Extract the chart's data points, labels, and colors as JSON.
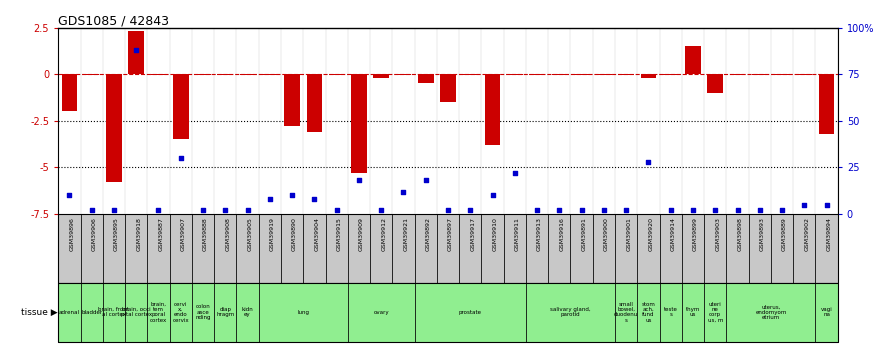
{
  "title": "GDS1085 / 42843",
  "samples": [
    "GSM39896",
    "GSM39906",
    "GSM39895",
    "GSM39918",
    "GSM39887",
    "GSM39907",
    "GSM39888",
    "GSM39908",
    "GSM39905",
    "GSM39919",
    "GSM39890",
    "GSM39904",
    "GSM39915",
    "GSM39909",
    "GSM39912",
    "GSM39921",
    "GSM39892",
    "GSM39897",
    "GSM39917",
    "GSM39910",
    "GSM39911",
    "GSM39913",
    "GSM39916",
    "GSM39891",
    "GSM39900",
    "GSM39901",
    "GSM39920",
    "GSM39914",
    "GSM39899",
    "GSM39903",
    "GSM39898",
    "GSM39893",
    "GSM39889",
    "GSM39902",
    "GSM39894"
  ],
  "log_ratio": [
    -2.0,
    -0.05,
    -5.8,
    2.3,
    -0.05,
    -3.5,
    -0.05,
    -0.05,
    -0.05,
    -0.05,
    -2.8,
    -3.1,
    -0.05,
    -5.3,
    -0.2,
    -0.05,
    -0.5,
    -1.5,
    -0.05,
    -3.8,
    -0.05,
    -0.05,
    -0.05,
    -0.05,
    -0.05,
    -0.05,
    -0.2,
    -0.05,
    1.5,
    -1.0,
    -0.05,
    -0.05,
    -0.05,
    -0.05,
    -3.2
  ],
  "percentile": [
    10,
    2,
    2,
    88,
    2,
    30,
    2,
    2,
    2,
    8,
    10,
    8,
    2,
    18,
    2,
    12,
    18,
    2,
    2,
    10,
    22,
    2,
    2,
    2,
    2,
    2,
    28,
    2,
    2,
    2,
    2,
    2,
    2,
    5,
    5
  ],
  "tissue_groups": [
    {
      "label": "adrenal",
      "start": 0,
      "end": 1
    },
    {
      "label": "bladder",
      "start": 1,
      "end": 2
    },
    {
      "label": "brain, front\nal cortex",
      "start": 2,
      "end": 3
    },
    {
      "label": "brain, occi\npital cortex",
      "start": 3,
      "end": 4
    },
    {
      "label": "brain,\ntem\nporal\ncortex",
      "start": 4,
      "end": 5
    },
    {
      "label": "cervi\nx,\nendo\ncervix",
      "start": 5,
      "end": 6
    },
    {
      "label": "colon\nasce\nnding",
      "start": 6,
      "end": 7
    },
    {
      "label": "diap\nhragm",
      "start": 7,
      "end": 8
    },
    {
      "label": "kidn\ney",
      "start": 8,
      "end": 9
    },
    {
      "label": "lung",
      "start": 9,
      "end": 13
    },
    {
      "label": "ovary",
      "start": 13,
      "end": 16
    },
    {
      "label": "prostate",
      "start": 16,
      "end": 21
    },
    {
      "label": "salivary gland,\nparotid",
      "start": 21,
      "end": 25
    },
    {
      "label": "small\nbowel,\nduodenu\ns",
      "start": 25,
      "end": 26
    },
    {
      "label": "stom\nach,\nfund\nus",
      "start": 26,
      "end": 27
    },
    {
      "label": "teste\ns",
      "start": 27,
      "end": 28
    },
    {
      "label": "thym\nus",
      "start": 28,
      "end": 29
    },
    {
      "label": "uteri\nne\ncorp\nus, m",
      "start": 29,
      "end": 30
    },
    {
      "label": "uterus,\nendomyom\netrium",
      "start": 30,
      "end": 34
    },
    {
      "label": "vagi\nna",
      "start": 34,
      "end": 35
    }
  ],
  "ylim_left": [
    -7.5,
    2.5
  ],
  "ylim_right": [
    0,
    100
  ],
  "bar_color": "#CC0000",
  "dot_color": "#0000CC",
  "green_color": "#90EE90",
  "gray_color": "#C8C8C8",
  "title_fontsize": 9
}
